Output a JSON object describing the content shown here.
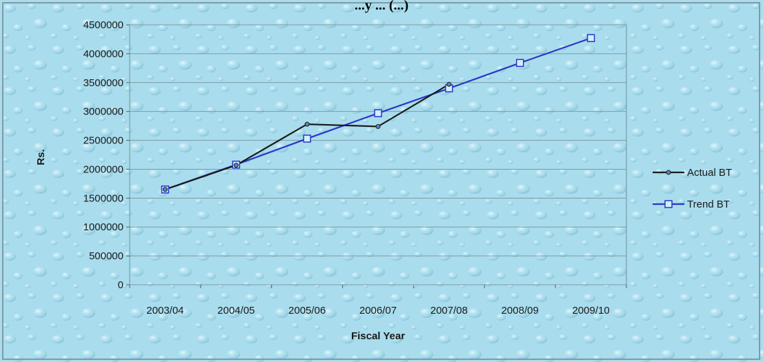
{
  "chart_data": {
    "type": "line",
    "title": "...y ... (...)",
    "xlabel": "Fiscal Year",
    "ylabel": "Rs.",
    "categories": [
      "2003/04",
      "2004/05",
      "2005/06",
      "2006/07",
      "2007/08",
      "2008/09",
      "2009/10"
    ],
    "ylim": [
      0,
      4500000
    ],
    "yticks": [
      0,
      500000,
      1000000,
      1500000,
      2000000,
      2500000,
      3000000,
      3500000,
      4000000,
      4500000
    ],
    "grid": true,
    "legend_position": "right",
    "series": [
      {
        "name": "Actual BT",
        "color": "#1a1a1a",
        "marker": "circle",
        "values": [
          1650000,
          2070000,
          2780000,
          2740000,
          3470000,
          null,
          null
        ]
      },
      {
        "name": "Trend BT",
        "color": "#2b35c8",
        "marker": "square",
        "values": [
          1650000,
          2080000,
          2530000,
          2970000,
          3400000,
          3840000,
          4270000
        ]
      }
    ],
    "colors": {
      "background": "#a9dcec",
      "plot_border": "#6f8f9e",
      "gridline": "#7f9aa6",
      "trend_marker_fill": "#cfefff"
    }
  }
}
